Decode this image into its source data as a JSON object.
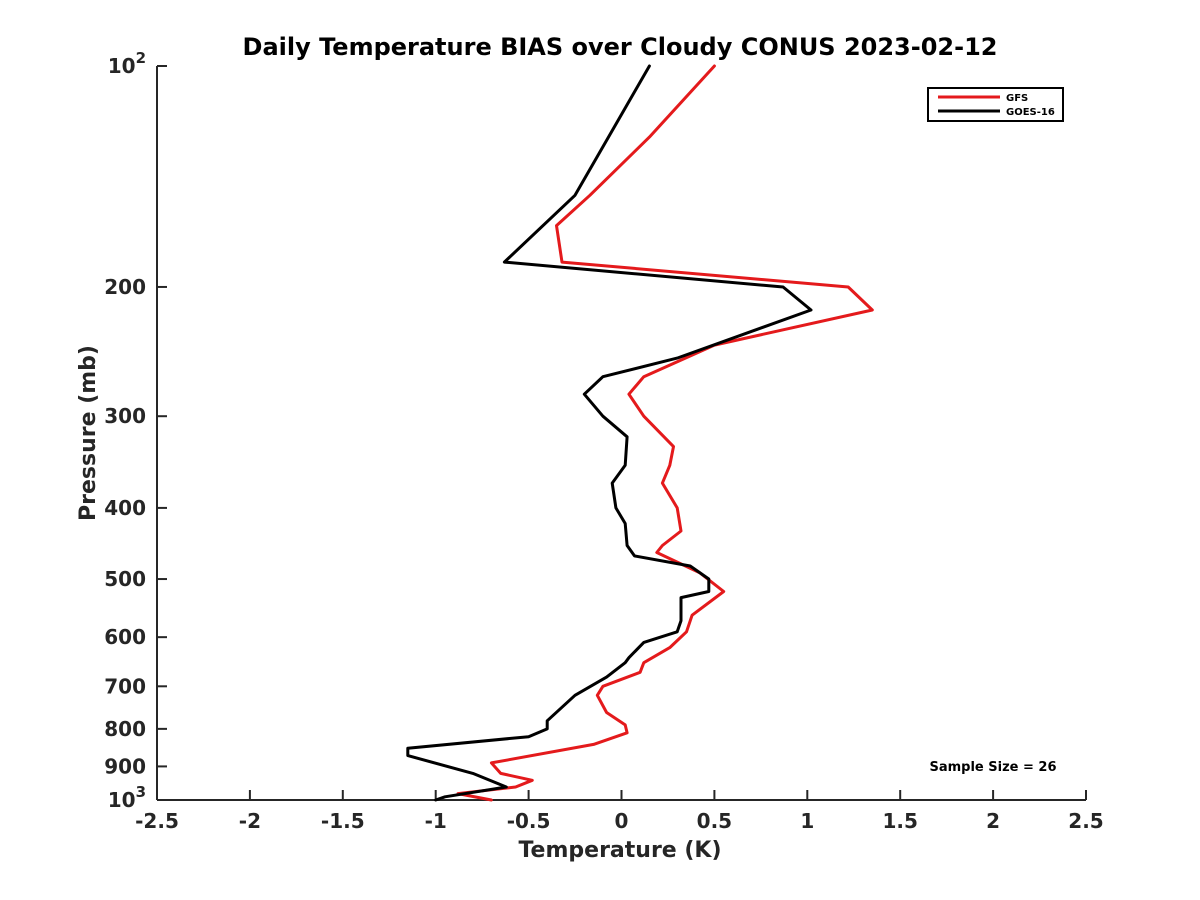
{
  "chart_data": {
    "type": "line",
    "title": "Daily Temperature BIAS over Cloudy CONUS 2023-02-12",
    "xlabel": "Temperature (K)",
    "ylabel": "Pressure (mb)",
    "xlim": [
      -2.5,
      2.5
    ],
    "ylim": [
      100,
      1000
    ],
    "y_scale": "log",
    "y_reversed": true,
    "grid": false,
    "legend_position": "top-right",
    "x_ticks": [
      {
        "value": -2.5,
        "label": "-2.5"
      },
      {
        "value": -2,
        "label": "-2"
      },
      {
        "value": -1.5,
        "label": "-1.5"
      },
      {
        "value": -1,
        "label": "-1"
      },
      {
        "value": -0.5,
        "label": "-0.5"
      },
      {
        "value": 0,
        "label": "0"
      },
      {
        "value": 0.5,
        "label": "0.5"
      },
      {
        "value": 1,
        "label": "1"
      },
      {
        "value": 1.5,
        "label": "1.5"
      },
      {
        "value": 2,
        "label": "2"
      },
      {
        "value": 2.5,
        "label": "2.5"
      }
    ],
    "y_ticks": [
      {
        "value": 100,
        "base": "10",
        "exp": "2"
      },
      {
        "value": 200,
        "label": "200"
      },
      {
        "value": 300,
        "label": "300"
      },
      {
        "value": 400,
        "label": "400"
      },
      {
        "value": 500,
        "label": "500"
      },
      {
        "value": 600,
        "label": "600"
      },
      {
        "value": 700,
        "label": "700"
      },
      {
        "value": 800,
        "label": "800"
      },
      {
        "value": 900,
        "label": "900"
      },
      {
        "value": 1000,
        "base": "10",
        "exp": "3"
      }
    ],
    "annotation": "Sample Size = 26",
    "series": [
      {
        "name": "GFS",
        "color": "#e41a1c",
        "points": [
          [
            0.5,
            100
          ],
          [
            0.15,
            125
          ],
          [
            -0.17,
            150
          ],
          [
            -0.35,
            165
          ],
          [
            -0.32,
            185
          ],
          [
            1.22,
            200
          ],
          [
            1.35,
            215
          ],
          [
            0.5,
            240
          ],
          [
            0.12,
            265
          ],
          [
            0.04,
            280
          ],
          [
            0.12,
            300
          ],
          [
            0.28,
            330
          ],
          [
            0.26,
            350
          ],
          [
            0.22,
            370
          ],
          [
            0.3,
            400
          ],
          [
            0.32,
            430
          ],
          [
            0.22,
            450
          ],
          [
            0.19,
            460
          ],
          [
            0.42,
            490
          ],
          [
            0.55,
            520
          ],
          [
            0.38,
            560
          ],
          [
            0.35,
            590
          ],
          [
            0.26,
            620
          ],
          [
            0.12,
            650
          ],
          [
            0.1,
            670
          ],
          [
            -0.1,
            700
          ],
          [
            -0.13,
            720
          ],
          [
            -0.08,
            760
          ],
          [
            0.02,
            790
          ],
          [
            0.03,
            810
          ],
          [
            -0.15,
            840
          ],
          [
            -0.7,
            890
          ],
          [
            -0.65,
            920
          ],
          [
            -0.48,
            940
          ],
          [
            -0.57,
            960
          ],
          [
            -0.88,
            980
          ],
          [
            -0.7,
            1000
          ]
        ]
      },
      {
        "name": "GOES-16",
        "color": "#000000",
        "points": [
          [
            0.15,
            100
          ],
          [
            -0.25,
            150
          ],
          [
            -0.63,
            185
          ],
          [
            0.87,
            200
          ],
          [
            1.02,
            215
          ],
          [
            0.3,
            250
          ],
          [
            -0.1,
            265
          ],
          [
            -0.2,
            280
          ],
          [
            -0.1,
            300
          ],
          [
            0.03,
            320
          ],
          [
            0.02,
            350
          ],
          [
            -0.05,
            370
          ],
          [
            -0.03,
            400
          ],
          [
            0.02,
            420
          ],
          [
            0.03,
            450
          ],
          [
            0.07,
            465
          ],
          [
            0.37,
            480
          ],
          [
            0.47,
            500
          ],
          [
            0.47,
            520
          ],
          [
            0.32,
            530
          ],
          [
            0.32,
            570
          ],
          [
            0.3,
            590
          ],
          [
            0.12,
            610
          ],
          [
            0.04,
            640
          ],
          [
            0.02,
            650
          ],
          [
            -0.08,
            680
          ],
          [
            -0.25,
            720
          ],
          [
            -0.4,
            780
          ],
          [
            -0.4,
            800
          ],
          [
            -0.5,
            820
          ],
          [
            -1.15,
            850
          ],
          [
            -1.15,
            870
          ],
          [
            -0.8,
            920
          ],
          [
            -0.62,
            960
          ],
          [
            -0.95,
            990
          ],
          [
            -1,
            1000
          ]
        ]
      }
    ]
  }
}
